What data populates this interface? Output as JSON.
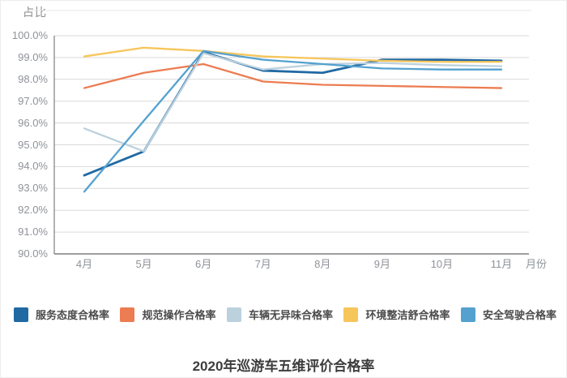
{
  "chart_data": {
    "type": "line",
    "title": "2020年巡游车五维评价合格率",
    "ylabel": "占比",
    "xlabel": "月份",
    "categories": [
      "4月",
      "5月",
      "6月",
      "7月",
      "8月",
      "9月",
      "10月",
      "11月"
    ],
    "ylim": [
      90,
      100
    ],
    "ytick_step": 1,
    "ytick_suffix": "%",
    "grid": true,
    "legend_position": "bottom",
    "colors": {
      "gridline": "#d9d9d9",
      "axis": "#7f7f7f",
      "tick_text": "#8f9399",
      "title_text": "#3d3d3d"
    },
    "series": [
      {
        "name": "服务态度合格率",
        "color": "#2069a3",
        "stroke_width": 2.8,
        "values": [
          93.6,
          94.7,
          99.25,
          98.4,
          98.3,
          98.9,
          98.9,
          98.85
        ]
      },
      {
        "name": "规范操作合格率",
        "color": "#ec7c51",
        "stroke_width": 2.3,
        "values": [
          97.6,
          98.3,
          98.7,
          97.9,
          97.75,
          97.7,
          97.65,
          97.6
        ]
      },
      {
        "name": "车辆无异味合格率",
        "color": "#bcd1de",
        "stroke_width": 2.3,
        "values": [
          95.75,
          94.7,
          99.2,
          98.45,
          98.7,
          98.75,
          98.65,
          98.6
        ]
      },
      {
        "name": "环境整洁舒合格率",
        "color": "#f6c65b",
        "stroke_width": 2.3,
        "values": [
          99.05,
          99.45,
          99.3,
          99.05,
          98.95,
          98.85,
          98.8,
          98.8
        ]
      },
      {
        "name": "安全驾驶合格率",
        "color": "#54a1cf",
        "stroke_width": 2.3,
        "values": [
          92.85,
          96.1,
          99.3,
          98.9,
          98.7,
          98.5,
          98.45,
          98.45
        ]
      }
    ]
  }
}
